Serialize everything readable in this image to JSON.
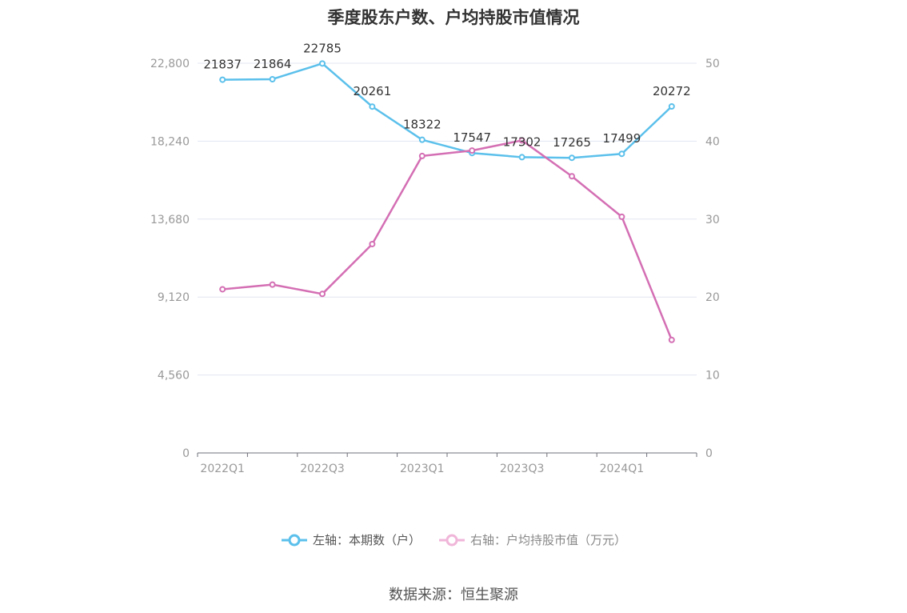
{
  "chart_data": {
    "type": "line",
    "title": "季度股东户数、户均持股市值情况",
    "categories": [
      "2022Q1",
      "2022Q2",
      "2022Q3",
      "2022Q4",
      "2023Q1",
      "2023Q2",
      "2023Q3",
      "2023Q4",
      "2024Q1",
      "2024Q2"
    ],
    "x_tick_labels": [
      "2022Q1",
      "2022Q3",
      "2023Q1",
      "2023Q3",
      "2024Q1"
    ],
    "left_axis": {
      "ylim": [
        0,
        22800
      ],
      "ticks": [
        "0",
        "4,560",
        "9,120",
        "13,680",
        "18,240",
        "22,800"
      ]
    },
    "right_axis": {
      "ylim": [
        0,
        50
      ],
      "ticks": [
        "0",
        "10",
        "20",
        "30",
        "40",
        "50"
      ]
    },
    "grid": true,
    "legend_placement": "bottom",
    "series": [
      {
        "name": "左轴：本期数（户）",
        "axis": "left",
        "color": "#5bc0eb",
        "values": [
          21837,
          21864,
          22785,
          20261,
          18322,
          17547,
          17302,
          17265,
          17499,
          20272
        ],
        "labels": [
          "21837",
          "21864",
          "22785",
          "20261",
          "18322",
          "17547",
          "17302",
          "17265",
          "17499",
          "20272"
        ]
      },
      {
        "name": "右轴：户均持股市值（万元）",
        "axis": "right",
        "color": "#d46fb4",
        "values": [
          21.0,
          21.6,
          20.4,
          26.8,
          38.1,
          38.8,
          40.1,
          35.5,
          30.3,
          14.5
        ]
      }
    ]
  },
  "source": "数据来源：恒生聚源"
}
